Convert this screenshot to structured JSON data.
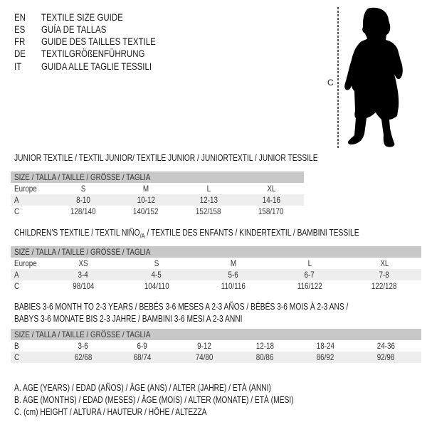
{
  "titles": [
    {
      "code": "EN",
      "text": "TEXTILE SIZE GUIDE"
    },
    {
      "code": "ES",
      "text": "GUÍA DE TALLAS"
    },
    {
      "code": "FR",
      "text": "GUIDE DES TAILLES TEXTILE"
    },
    {
      "code": "DE",
      "text": "TEXTILGRÖßENFÜHRUNG"
    },
    {
      "code": "IT",
      "text": "GUIDA ALLE TAGLIE TESSILI"
    }
  ],
  "figure": {
    "label": "C",
    "icon": "child-silhouette-icon"
  },
  "junior": {
    "title": "JUNIOR TEXTILE / TEXTIL JUNIOR/ TEXTILE JUNIOR / JUNIORTEXTIL / JUNIOR TESSILE",
    "header": "SIZE / TALLA / TAILLE / GRÖSSE / TAGLIA",
    "rows": [
      {
        "label": "Europe",
        "values": [
          "S",
          "M",
          "L",
          "XL"
        ]
      },
      {
        "label": "A",
        "values": [
          "8-10",
          "10-12",
          "12-13",
          "14-16"
        ]
      },
      {
        "label": "C",
        "values": [
          "128/140",
          "140/152",
          "152/158",
          "158/170"
        ]
      }
    ]
  },
  "children": {
    "title_part1": "CHILDREN'S TEXTILE / TEXTIL NIÑO",
    "title_sub": "/A",
    "title_part2": " / TEXTILE DES ENFANTS / KINDERTEXTIL / BAMBINI TESSILE",
    "header": "SIZE / TALLA / TAILLE / GRÖSSE / TAGLIA",
    "rows": [
      {
        "label": "Europe",
        "values": [
          "XS",
          "S",
          "M",
          "L",
          "XL"
        ]
      },
      {
        "label": "A",
        "values": [
          "3-4",
          "4-5",
          "5-6",
          "6-7",
          "7-8"
        ]
      },
      {
        "label": "C",
        "values": [
          "98/104",
          "104/110",
          "110/116",
          "116/122",
          "122/128"
        ]
      }
    ]
  },
  "babies": {
    "title_line1": "BABIES 3-6 MONTH TO 2-3 YEARS / BEBÉS 3-6 MESES A 2-3 AÑOS / BÉBÉS 3-6 MOIS À 2-3 ANS /",
    "title_line2": "BABYS 3-6 MONATE BIS 2-3 JAHRE / BAMBINI 3-6 MESI A 2-3 ANNI",
    "header": "SIZE / TALLA / TAILLE / GRÖSSE / TAGLIA",
    "rows": [
      {
        "label": "B",
        "values": [
          "3-6",
          "6-9",
          "9-12",
          "12-18",
          "18-24",
          "24-36"
        ]
      },
      {
        "label": "C",
        "values": [
          "62/68",
          "68/74",
          "74/80",
          "80/86",
          "86/92",
          "92/98"
        ]
      }
    ]
  },
  "legend": [
    "A. AGE (YEARS) / EDAD (AÑOS) / ÂGE (ANS) / ALTER (JAHRE) / ETÀ (ANNI)",
    "B. AGE (MONTHS) / EDAD (MESES) / ÂGE (MOIS) / ALTER (MONATE) / ETÀ (MESI)",
    "C. (cm) HEIGHT / ALTURA / HAUTEUR / HÖHE / ALTEZZA"
  ]
}
